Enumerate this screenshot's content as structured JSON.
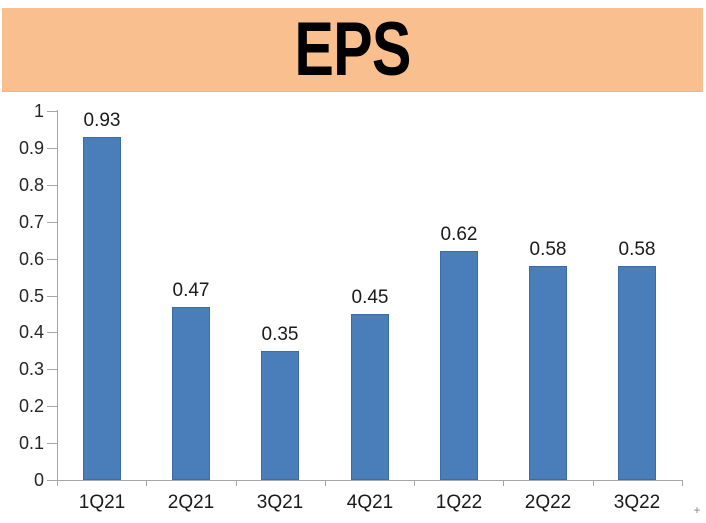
{
  "header": {
    "title": "EPS",
    "background": "#FABF8F",
    "text_color": "#000000"
  },
  "chart_data": {
    "type": "bar",
    "title": "EPS",
    "categories": [
      "1Q21",
      "2Q21",
      "3Q21",
      "4Q21",
      "1Q22",
      "2Q22",
      "3Q22"
    ],
    "values": [
      0.93,
      0.47,
      0.35,
      0.45,
      0.62,
      0.58,
      0.58
    ],
    "data_labels": [
      "0.93",
      "0.47",
      "0.35",
      "0.45",
      "0.62",
      "0.58",
      "0.58"
    ],
    "y_ticks": [
      "0",
      "0.1",
      "0.2",
      "0.3",
      "0.4",
      "0.5",
      "0.6",
      "0.7",
      "0.8",
      "0.9",
      "1"
    ],
    "ylim": [
      0,
      1
    ],
    "xlabel": "",
    "ylabel": "",
    "grid": false,
    "legend": false,
    "colors": {
      "bar": "#4A7EBB",
      "bar_border": "#3B6CA5",
      "axis": "#A6A6A6",
      "tick_label": "#262626",
      "value_label": "#1A1A1A"
    }
  },
  "artifact": {
    "plus_mark": "+"
  }
}
